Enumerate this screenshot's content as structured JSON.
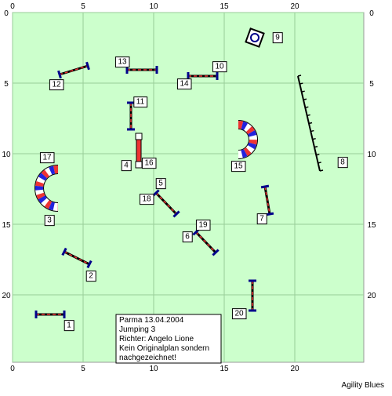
{
  "axes": {
    "x_labels": [
      "0",
      "5",
      "10",
      "15",
      "20"
    ],
    "y_labels": [
      "0",
      "5",
      "10",
      "15",
      "20"
    ]
  },
  "obstacles": {
    "labels": [
      "1",
      "2",
      "3",
      "4",
      "5",
      "6",
      "7",
      "8",
      "9",
      "10",
      "11",
      "12",
      "13",
      "14",
      "15",
      "16",
      "17",
      "18",
      "19",
      "20"
    ]
  },
  "info": {
    "lines": [
      "Parma 13.04.2004",
      "Jumping 3",
      "Richter: Angelo Lione",
      "Kein Originalplan sondern",
      "nachgezeichnet!"
    ]
  },
  "footer": "Agility Blues"
}
